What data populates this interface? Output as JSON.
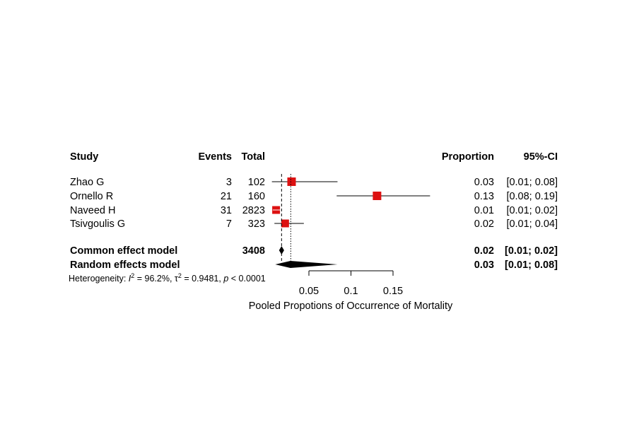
{
  "chart_data": {
    "type": "forest",
    "headers": {
      "study": "Study",
      "events": "Events",
      "total": "Total",
      "proportion": "Proportion",
      "ci": "95%-CI"
    },
    "studies": [
      {
        "name": "Zhao G",
        "events": "3",
        "total": "102",
        "proportion": 0.0294,
        "lower": 0.006,
        "upper": 0.084,
        "proportion_text": "0.03",
        "ci_text": "[0.01; 0.08]"
      },
      {
        "name": "Ornello R",
        "events": "21",
        "total": "160",
        "proportion": 0.131,
        "lower": 0.083,
        "upper": 0.194,
        "proportion_text": "0.13",
        "ci_text": "[0.08; 0.19]"
      },
      {
        "name": "Naveed H",
        "events": "31",
        "total": "2823",
        "proportion": 0.011,
        "lower": 0.007,
        "upper": 0.016,
        "proportion_text": "0.01",
        "ci_text": "[0.01; 0.02]"
      },
      {
        "name": "Tsivgoulis G",
        "events": "7",
        "total": "323",
        "proportion": 0.0217,
        "lower": 0.009,
        "upper": 0.044,
        "proportion_text": "0.02",
        "ci_text": "[0.01; 0.04]"
      }
    ],
    "common": {
      "label": "Common effect model",
      "total": "3408",
      "estimate": 0.0175,
      "lower": 0.0145,
      "upper": 0.0205,
      "proportion_text": "0.02",
      "ci_text": "[0.01; 0.02]"
    },
    "random": {
      "label": "Random effects model",
      "estimate": 0.028,
      "lower": 0.01,
      "upper": 0.084,
      "proportion_text": "0.03",
      "ci_text": "[0.01; 0.08]"
    },
    "heterogeneity": {
      "prefix": "Heterogeneity: ",
      "i2_symbol": "I",
      "i2_value": " = 96.2%, ",
      "tau2_symbol": "τ",
      "tau2_value": " = 0.9481, ",
      "p_symbol": "p",
      "p_value": " < 0.0001"
    },
    "x_axis": {
      "ticks": [
        0.05,
        0.1,
        0.15
      ],
      "tick_labels": [
        "0.05",
        "0.1",
        "0.15"
      ],
      "label": "Pooled Propotions of Occurrence of Mortality"
    },
    "reference_line": 0.0175,
    "colors": {
      "square": "#dd1111",
      "line": "#000000",
      "diamond": "#000000"
    }
  }
}
